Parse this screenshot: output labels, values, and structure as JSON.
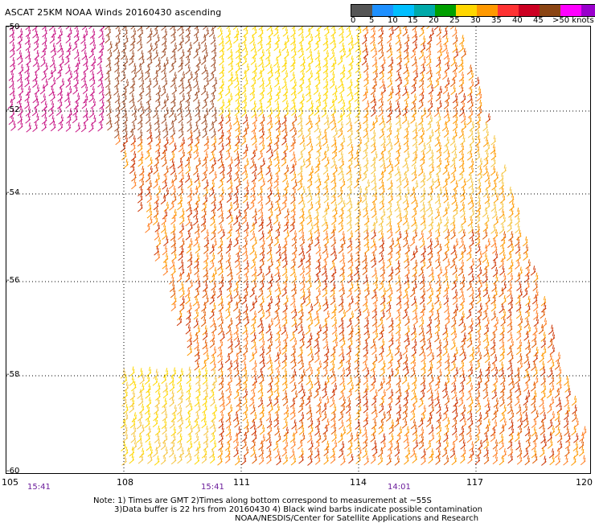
{
  "title": "ASCAT 25KM NOAA Winds 20160430 ascending",
  "colorbar": {
    "colors": [
      "#555555",
      "#1e90ff",
      "#00bfff",
      "#00aaaa",
      "#00a000",
      "#ffd700",
      "#ff9900",
      "#ff3333",
      "#cc0022",
      "#8b4513",
      "#ff00ff",
      "#9900cc",
      "#330066"
    ],
    "labels": [
      "0",
      "5",
      "10",
      "15",
      "20",
      "25",
      "30",
      "35",
      "40",
      "45",
      ">50 knots"
    ]
  },
  "map": {
    "lat_labels": [
      "-50",
      "-52",
      "-54",
      "-56",
      "-58",
      "-60"
    ],
    "lon_labels": [
      "105",
      "108",
      "111",
      "114",
      "117",
      "120"
    ],
    "time_labels": [
      "15:41",
      "15:41",
      "14:01"
    ],
    "barb_palette": [
      "#ffd700",
      "#f5c542",
      "#ff9900",
      "#ff7f24",
      "#e05a00",
      "#cc3300",
      "#b22222",
      "#a0522d",
      "#c71585",
      "#ff00ff"
    ]
  },
  "notes": {
    "line1": "Note: 1) Times are GMT 2)Times along bottom correspond to measurement at ~55S",
    "line2": "3)Data buffer is 22 hrs from 20160430 4) Black wind barbs indicate possible contamination",
    "credit": "NOAA/NESDIS/Center for Satellite Applications and Research"
  }
}
